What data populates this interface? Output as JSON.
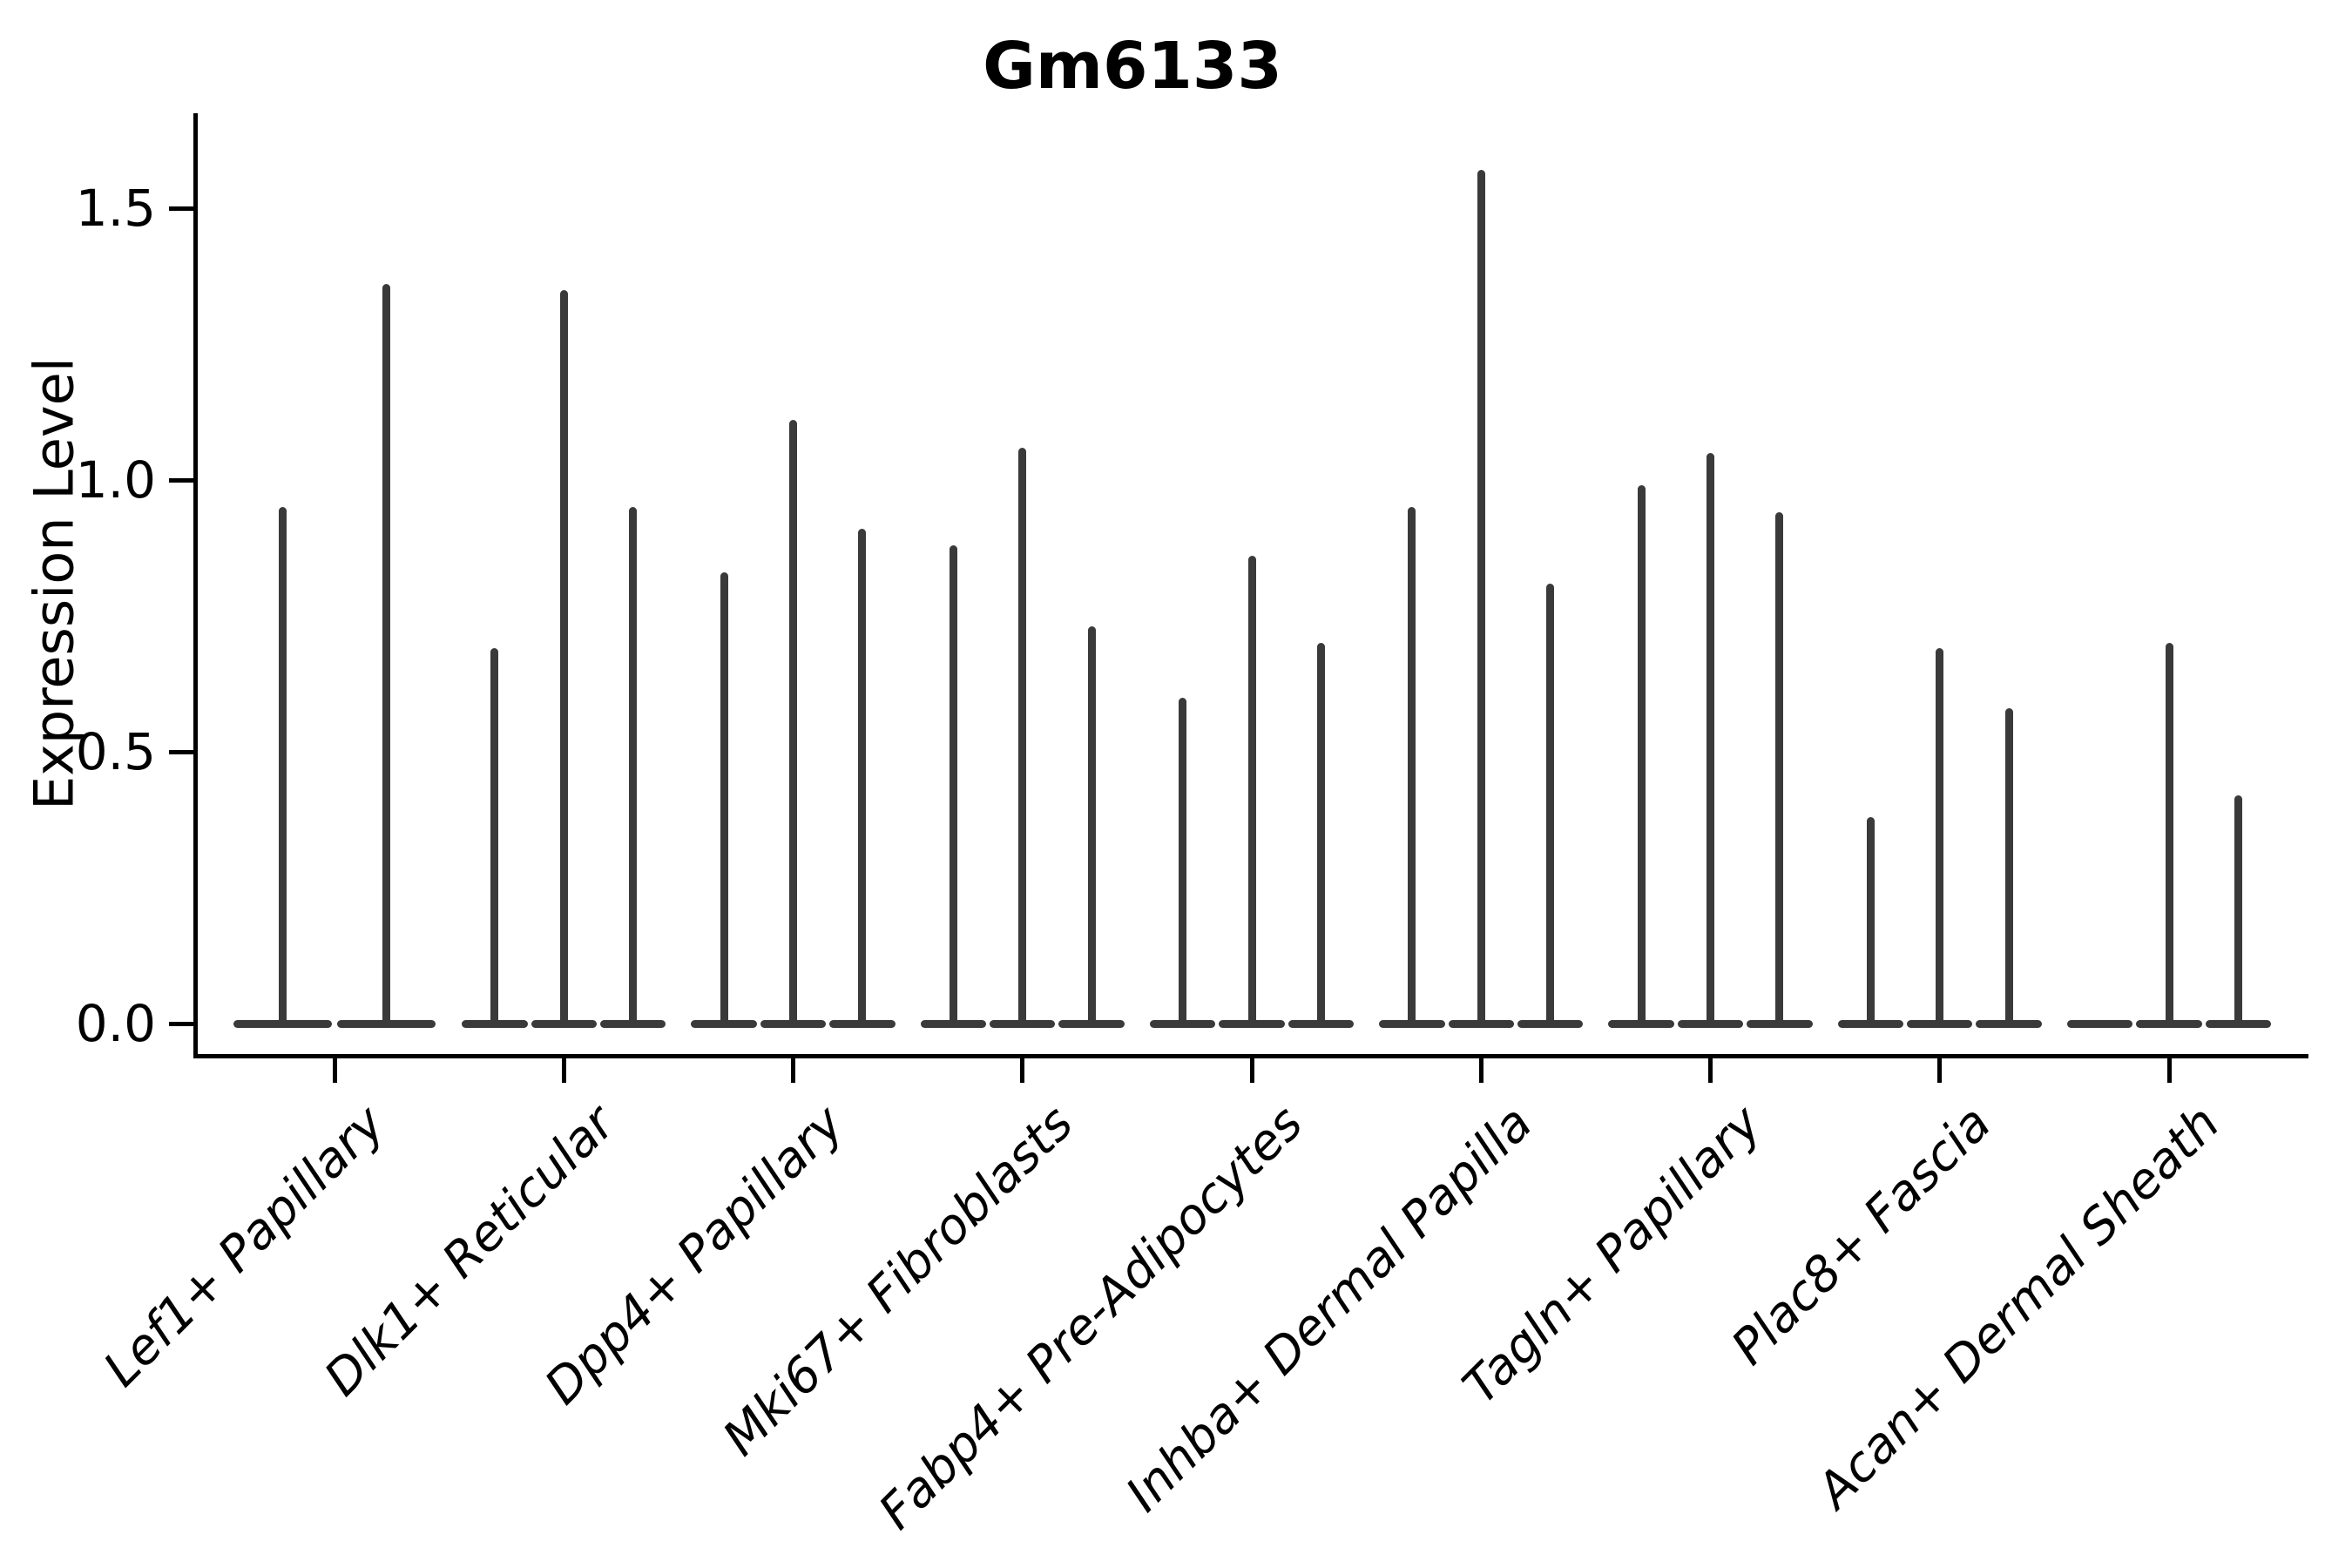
{
  "chart_data": {
    "type": "violin",
    "title": "Gm6133",
    "ylabel": "Expression Level",
    "xlabel": "",
    "ylim": [
      -0.06,
      1.67
    ],
    "yticks": [
      {
        "value": 0.0,
        "label": "0.0"
      },
      {
        "value": 0.5,
        "label": "0.5"
      },
      {
        "value": 1.0,
        "label": "1.0"
      },
      {
        "value": 1.5,
        "label": "1.5"
      }
    ],
    "grid": false,
    "legend": "none",
    "categories": [
      "Lef1+ Papillary",
      "Dlk1+ Reticular",
      "Dpp4+ Papillary",
      "Mki67+ Fibroblasts",
      "Fabp4+ Pre-Adipocytes",
      "Inhba+ Dermal Papilla",
      "Tagln+ Papillary",
      "Plac8+ Fascia",
      "Acan+ Dermal Sheath"
    ],
    "groups": [
      {
        "category": "Lef1+ Papillary",
        "violin_max_values": [
          0.95,
          1.36
        ]
      },
      {
        "category": "Dlk1+ Reticular",
        "violin_max_values": [
          0.69,
          1.35,
          0.95
        ]
      },
      {
        "category": "Dpp4+ Papillary",
        "violin_max_values": [
          0.83,
          1.11,
          0.91
        ]
      },
      {
        "category": "Mki67+ Fibroblasts",
        "violin_max_values": [
          0.88,
          1.06,
          0.73
        ]
      },
      {
        "category": "Fabp4+ Pre-Adipocytes",
        "violin_max_values": [
          0.6,
          0.86,
          0.7
        ]
      },
      {
        "category": "Inhba+ Dermal Papilla",
        "violin_max_values": [
          0.95,
          1.57,
          0.81
        ]
      },
      {
        "category": "Tagln+ Papillary",
        "violin_max_values": [
          0.99,
          1.05,
          0.94
        ]
      },
      {
        "category": "Plac8+ Fascia",
        "violin_max_values": [
          0.38,
          0.69,
          0.58
        ]
      },
      {
        "category": "Acan+ Dermal Sheath",
        "violin_max_values": [
          0.0,
          0.7,
          0.42
        ]
      }
    ],
    "violin_distribution_note": "all mass concentrated at 0 with thin tail to max",
    "colors": {
      "violin": "#3a3a3a",
      "axis": "#000000",
      "text": "#000000",
      "background": "#ffffff"
    }
  }
}
